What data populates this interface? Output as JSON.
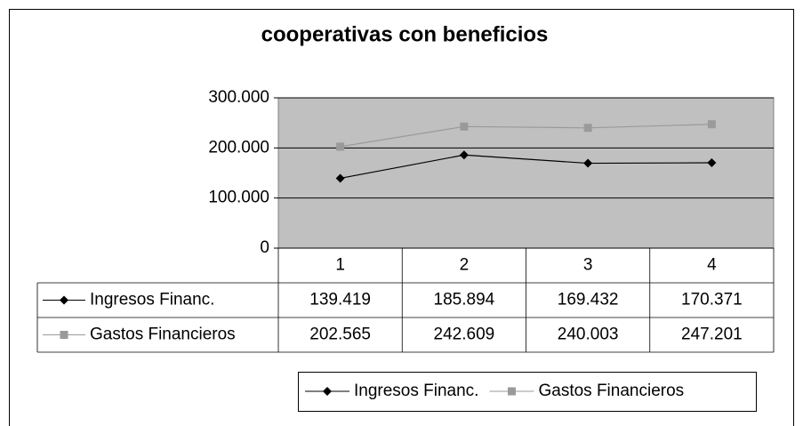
{
  "chart_data": {
    "type": "line",
    "title": "cooperativas con beneficios",
    "categories": [
      "1",
      "2",
      "3",
      "4"
    ],
    "series": [
      {
        "name": "Ingresos Financ.",
        "color": "#000000",
        "marker": "diamond",
        "values": [
          139419,
          185894,
          169432,
          170371
        ],
        "value_labels": [
          "139.419",
          "185.894",
          "169.432",
          "170.371"
        ]
      },
      {
        "name": "Gastos Financieros",
        "color": "#9a9a9a",
        "marker": "square",
        "values": [
          202565,
          242609,
          240003,
          247201
        ],
        "value_labels": [
          "202.565",
          "242.609",
          "240.003",
          "247.201"
        ]
      }
    ],
    "ylim": [
      0,
      300000
    ],
    "yticks": [
      0,
      {
        "value": 100000,
        "label": "100.000"
      },
      {
        "value": 200000,
        "label": "200.000"
      },
      {
        "value": 300000,
        "label": "300.000"
      }
    ],
    "grid": true,
    "plot_background": "#c0c0c0",
    "legend": "bottom",
    "data_table": true
  }
}
